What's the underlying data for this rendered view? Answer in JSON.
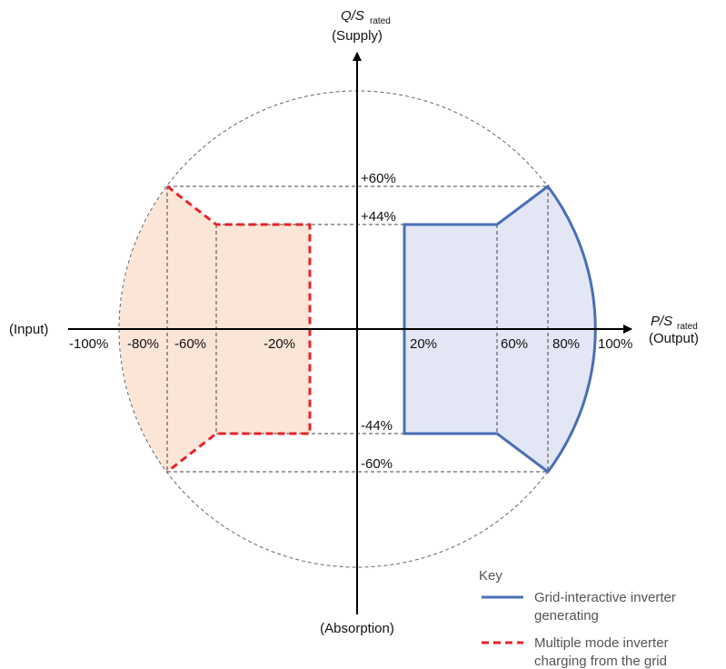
{
  "y_axis": {
    "symbol": "Q/S",
    "subscript": "rated",
    "top_label": "(Supply)",
    "bottom_label": "(Absorption)",
    "ticks": [
      "+60%",
      "+44%",
      "-44%",
      "-60%"
    ]
  },
  "x_axis": {
    "symbol": "P/S",
    "subscript": "rated",
    "right_label": "(Output)",
    "left_label": "(Input)",
    "ticks": [
      "-100%",
      "-80%",
      "-60%",
      "-20%",
      "20%",
      "60%",
      "80%",
      "100%"
    ]
  },
  "key": {
    "title": "Key",
    "items": [
      {
        "lines": [
          "Grid-interactive inverter",
          "generating"
        ]
      },
      {
        "lines": [
          "Multiple mode inverter",
          "charging from the grid"
        ]
      }
    ]
  }
}
